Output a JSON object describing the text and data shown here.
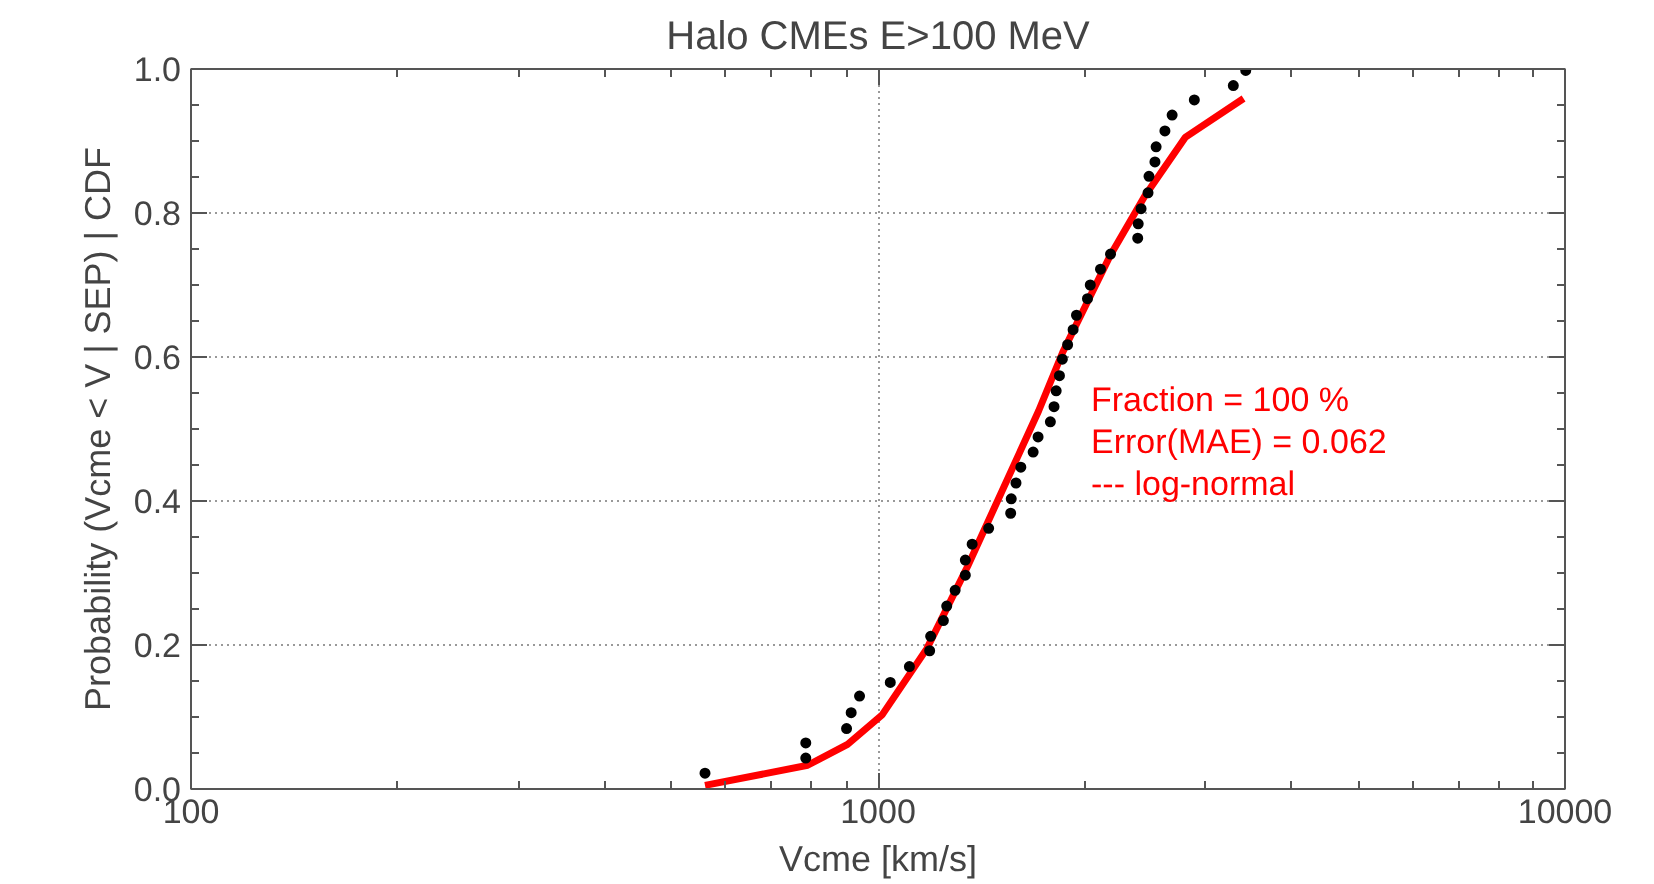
{
  "chart_data": {
    "type": "scatter",
    "title": "Halo CMEs E>100 MeV",
    "xlabel": "Vcme [km/s]",
    "ylabel": "Probability (Vcme < V | SEP) | CDF",
    "log": "x",
    "xlim": [
      100,
      10000
    ],
    "xticks": [
      100,
      1000,
      10000
    ],
    "ylim": [
      0,
      1
    ],
    "yticks": [
      {
        "value": 0,
        "label": "0.0"
      },
      {
        "value": 0.2,
        "label": "0.2"
      },
      {
        "value": 0.4,
        "label": "0.4"
      },
      {
        "value": 0.6,
        "label": "0.6"
      },
      {
        "value": 0.8,
        "label": "0.8"
      },
      {
        "value": 1,
        "label": "1.0"
      }
    ],
    "grid": true,
    "series": [
      {
        "marker": "circle",
        "color": "#000000",
        "x": [
          560,
          785,
          785,
          900,
          914,
          940,
          1042,
          1111,
          1189,
          1193,
          1245,
          1259,
          1295,
          1340,
          1340,
          1371,
          1449,
          1560,
          1563,
          1588,
          1614,
          1682,
          1710,
          1782,
          1804,
          1817,
          1837,
          1855,
          1888,
          1923,
          1945,
          2018,
          2037,
          2108,
          2180,
          2388,
          2392,
          2415,
          2472,
          2480,
          2530,
          2540,
          2616,
          2680,
          2887,
          3290,
          3430
        ],
        "values": [
          0.022,
          0.043,
          0.064,
          0.084,
          0.106,
          0.129,
          0.148,
          0.17,
          0.192,
          0.212,
          0.234,
          0.254,
          0.276,
          0.297,
          0.318,
          0.34,
          0.362,
          0.383,
          0.403,
          0.425,
          0.447,
          0.468,
          0.489,
          0.51,
          0.531,
          0.553,
          0.574,
          0.597,
          0.617,
          0.638,
          0.658,
          0.681,
          0.7,
          0.722,
          0.743,
          0.765,
          0.785,
          0.806,
          0.828,
          0.851,
          0.871,
          0.892,
          0.914,
          0.936,
          0.957,
          0.977,
          0.998
        ]
      },
      {
        "type": "line",
        "color": "#ff0000",
        "line_style": "solid",
        "x": [
          560,
          790,
          903,
          1014,
          1178,
          1350,
          1713,
          1858,
          2178,
          2443,
          2800,
          3405
        ],
        "values": [
          0.005,
          0.033,
          0.062,
          0.103,
          0.195,
          0.309,
          0.525,
          0.607,
          0.741,
          0.823,
          0.905,
          0.959
        ]
      }
    ],
    "annotations": [
      "Fraction = 100 %",
      "Error(MAE) = 0.062",
      "--- log-normal"
    ]
  }
}
